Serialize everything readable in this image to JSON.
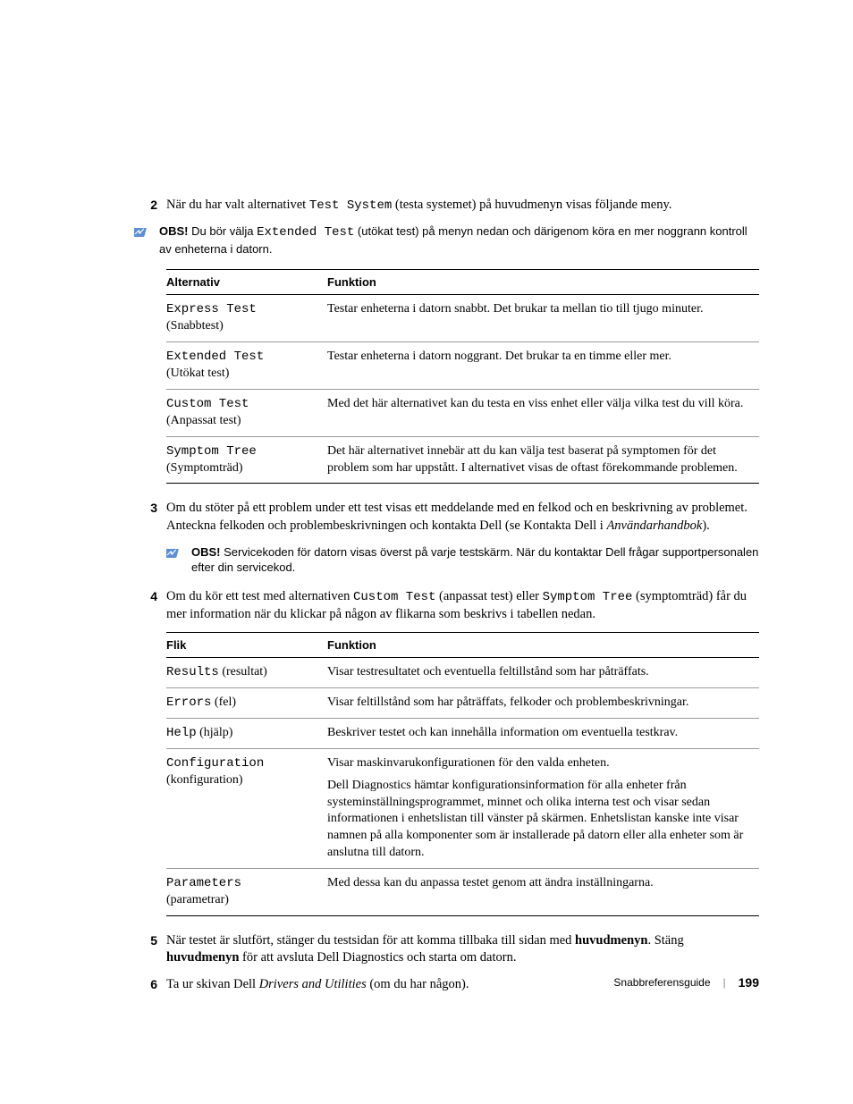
{
  "step2": {
    "num": "2",
    "text_a": "När du har valt alternativet ",
    "code_a": "Test System",
    "text_b": " (testa systemet) på huvudmenyn visas följande meny."
  },
  "note1": {
    "label": "OBS!",
    "text_a": " Du bör välja ",
    "code_a": "Extended Test",
    "text_b": " (utökat test) på menyn nedan och därigenom köra en mer noggrann kontroll av enheterna i datorn."
  },
  "table1": {
    "headers": {
      "c1": "Alternativ",
      "c2": "Funktion"
    },
    "rows": [
      {
        "code": "Express Test",
        "trans": "(Snabbtest)",
        "func": "Testar enheterna i datorn snabbt. Det brukar ta mellan tio till tjugo minuter."
      },
      {
        "code": "Extended Test",
        "trans": "(Utökat test)",
        "func": "Testar enheterna i datorn noggrant. Det brukar ta en timme eller mer."
      },
      {
        "code": "Custom Test",
        "trans": "(Anpassat test)",
        "func": "Med det här alternativet kan du testa en viss enhet eller välja vilka test du vill köra."
      },
      {
        "code": "Symptom Tree",
        "trans": "(Symptomträd)",
        "func": "Det här alternativet innebär att du kan välja test baserat på symptomen för det problem som har uppstått. I alternativet visas de oftast förekommande problemen."
      }
    ]
  },
  "step3": {
    "num": "3",
    "text_a": "Om du stöter på ett problem under ett test visas ett meddelande med en felkod och en beskrivning av problemet. Anteckna felkoden och problembeskrivningen och kontakta Dell (se Kontakta Dell i ",
    "italic": "Användarhandbok",
    "text_b": ")."
  },
  "note2": {
    "label": "OBS!",
    "text": " Servicekoden för datorn visas överst på varje testskärm. När du kontaktar Dell frågar supportpersonalen efter din servicekod."
  },
  "step4": {
    "num": "4",
    "text_a": "Om du kör ett test med alternativen ",
    "code_a": "Custom Test",
    "text_b": " (anpassat test) eller ",
    "code_b": "Symptom Tree",
    "text_c": " (symptomträd) får du mer information när du klickar på någon av flikarna som beskrivs i tabellen nedan."
  },
  "table2": {
    "headers": {
      "c1": "Flik",
      "c2": "Funktion"
    },
    "rows": [
      {
        "code": "Results",
        "trans": " (resultat)",
        "func": "Visar testresultatet och eventuella feltillstånd som har påträffats."
      },
      {
        "code": "Errors",
        "trans": " (fel)",
        "func": "Visar feltillstånd som har påträffats, felkoder och problembeskrivningar."
      },
      {
        "code": "Help",
        "trans": " (hjälp)",
        "func": "Beskriver testet och kan innehålla information om eventuella testkrav."
      },
      {
        "code": "Configuration",
        "trans": "(konfiguration)",
        "func": "Visar maskinvarukonfigurationen för den valda enheten.",
        "extra": "Dell Diagnostics hämtar konfigurationsinformation för alla enheter från systeminställningsprogrammet, minnet och olika interna test och visar sedan informationen i enhetslistan till vänster på skärmen. Enhetslistan kanske inte visar namnen på alla komponenter som är installerade på datorn eller alla enheter som är anslutna till datorn."
      },
      {
        "code": "Parameters",
        "trans": "(parametrar)",
        "func": "Med dessa kan du anpassa testet genom att ändra inställningarna."
      }
    ]
  },
  "step5": {
    "num": "5",
    "text_a": "När testet är slutfört, stänger du testsidan för att komma tillbaka till sidan med ",
    "bold_a": "huvudmenyn",
    "text_b": ". Stäng ",
    "bold_b": "huvudmenyn",
    "text_c": " för att avsluta Dell Diagnostics och starta om datorn."
  },
  "step6": {
    "num": "6",
    "text_a": "Ta ur skivan Dell ",
    "italic": "Drivers and Utilities",
    "text_b": " (om du har någon)."
  },
  "footer": {
    "title": "Snabbreferensguide",
    "page": "199"
  }
}
